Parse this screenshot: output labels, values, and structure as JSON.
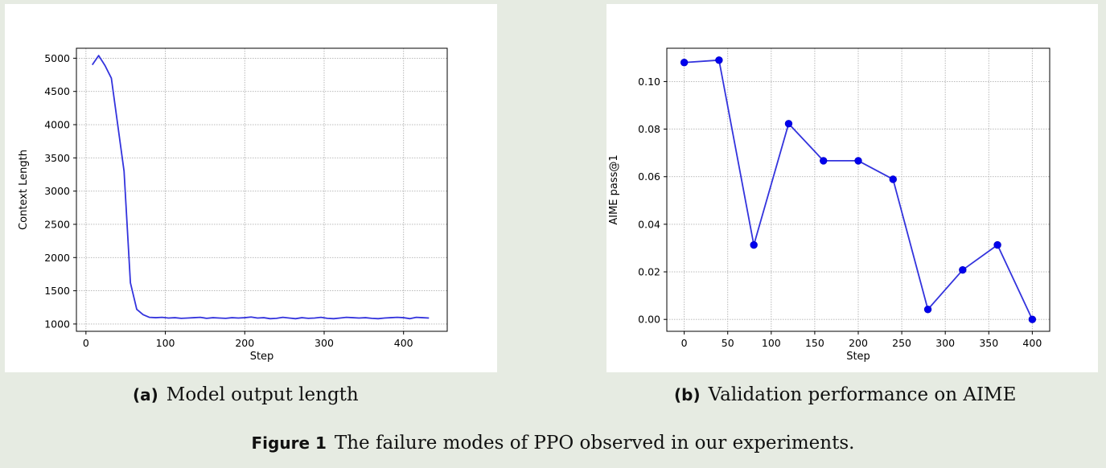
{
  "chart_data": [
    {
      "type": "line",
      "xlabel": "Step",
      "ylabel": "Context Length",
      "xlim": [
        -12,
        455
      ],
      "ylim": [
        890,
        5150
      ],
      "xticks": [
        0,
        100,
        200,
        300,
        400
      ],
      "yticks": [
        1000,
        1500,
        2000,
        2500,
        3000,
        3500,
        4000,
        4500,
        5000
      ],
      "grid": true,
      "color": "#3333dd",
      "series": [
        {
          "x": [
            8,
            16,
            24,
            32,
            40,
            48,
            56,
            64,
            72,
            80,
            88,
            96,
            104,
            112,
            120,
            128,
            136,
            144,
            152,
            160,
            168,
            176,
            184,
            192,
            200,
            208,
            216,
            224,
            232,
            240,
            248,
            256,
            264,
            272,
            280,
            288,
            296,
            304,
            312,
            320,
            328,
            336,
            344,
            352,
            360,
            368,
            376,
            384,
            392,
            400,
            408,
            416,
            424,
            432
          ],
          "values": [
            4900,
            5040,
            4890,
            4700,
            4000,
            3300,
            1620,
            1220,
            1140,
            1100,
            1095,
            1100,
            1090,
            1095,
            1085,
            1090,
            1095,
            1100,
            1085,
            1095,
            1090,
            1085,
            1095,
            1090,
            1095,
            1105,
            1090,
            1095,
            1080,
            1085,
            1100,
            1090,
            1080,
            1095,
            1085,
            1090,
            1100,
            1085,
            1080,
            1090,
            1100,
            1095,
            1090,
            1095,
            1085,
            1080,
            1090,
            1095,
            1100,
            1095,
            1080,
            1100,
            1095,
            1090
          ]
        }
      ]
    },
    {
      "type": "line",
      "xlabel": "Step",
      "ylabel": "AIME pass@1",
      "xlim": [
        -20,
        420
      ],
      "ylim": [
        -0.005,
        0.114
      ],
      "xticks": [
        0,
        50,
        100,
        150,
        200,
        250,
        300,
        350,
        400
      ],
      "yticks": [
        0.0,
        0.02,
        0.04,
        0.06,
        0.08,
        0.1
      ],
      "ytick_labels": [
        "0.00",
        "0.02",
        "0.04",
        "0.06",
        "0.08",
        "0.10"
      ],
      "grid": true,
      "markers": true,
      "color": "#3333dd",
      "series": [
        {
          "x": [
            0,
            40,
            80,
            120,
            160,
            200,
            240,
            280,
            320,
            360,
            400
          ],
          "values": [
            0.108,
            0.109,
            0.0313,
            0.0823,
            0.0667,
            0.0667,
            0.0589,
            0.0042,
            0.0208,
            0.0313,
            0.0
          ]
        }
      ]
    }
  ],
  "captions": {
    "a_label": "(a)",
    "a_text": "Model output length",
    "b_label": "(b)",
    "b_text": "Validation performance on AIME",
    "figure_label": "Figure 1",
    "figure_text": "The failure modes of PPO observed in our experiments."
  }
}
